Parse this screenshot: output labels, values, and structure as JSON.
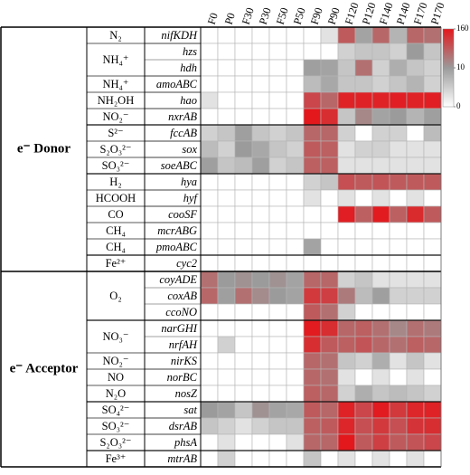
{
  "chart_data": {
    "type": "heatmap",
    "samples": [
      "F0",
      "P0",
      "F30",
      "P30",
      "F50",
      "P50",
      "F90",
      "P90",
      "F120",
      "P120",
      "F140",
      "P140",
      "F170",
      "P170"
    ],
    "genes": [
      "nifKDH",
      "hzs",
      "hdh",
      "amoABC",
      "hao",
      "nxrAB",
      "fccAB",
      "sox",
      "soeABC",
      "hya",
      "hyf",
      "cooSF",
      "mcrABG",
      "pmoABC",
      "cyc2",
      "coyADE",
      "coxAB",
      "ccoNO",
      "narGHI",
      "nrfAH",
      "nirKS",
      "norBC",
      "nosZ",
      "sat",
      "dsrAB",
      "phsA",
      "mtrAB"
    ],
    "compounds": [
      "N₂",
      "NH₄⁺",
      null,
      "NH₄⁺",
      "NH₂OH",
      "NO₂⁻",
      "S²⁻",
      "S₂O₃²⁻",
      "SO₃²⁻",
      "H₂",
      "HCOOH",
      "CO",
      "CH₄",
      "CH₄",
      "Fe²⁺",
      "O₂",
      null,
      null,
      "NO₃⁻",
      null,
      "NO₂⁻",
      "NO",
      "N₂O",
      "SO₄²⁻",
      "SO₃²⁻",
      "S₂O₃²⁻",
      "Fe³⁺"
    ],
    "sections": [
      "e⁻ Donor",
      null,
      null,
      null,
      null,
      null,
      null,
      null,
      null,
      null,
      null,
      null,
      null,
      null,
      null,
      "e⁻ Acceptor",
      null,
      null,
      null,
      null,
      null,
      null,
      null,
      null,
      null,
      null,
      null
    ],
    "values": [
      [
        0,
        0,
        0,
        0,
        0,
        0,
        0,
        1,
        40,
        8,
        30,
        5,
        30,
        25
      ],
      [
        0,
        0,
        0,
        0,
        0,
        0,
        0,
        0,
        2,
        3,
        3,
        2,
        10,
        3
      ],
      [
        0,
        0,
        0,
        0,
        0,
        0,
        9,
        8,
        3,
        25,
        2,
        6,
        3,
        2
      ],
      [
        0,
        0,
        0,
        0,
        0,
        0,
        4,
        7,
        3,
        3,
        2,
        3,
        5,
        2
      ],
      [
        1,
        0,
        0,
        0,
        0,
        0,
        60,
        30,
        130,
        130,
        130,
        140,
        130,
        140
      ],
      [
        0,
        0,
        0,
        0,
        0,
        0,
        160,
        100,
        3,
        15,
        8,
        10,
        5,
        9
      ],
      [
        2,
        3,
        9,
        3,
        2,
        3,
        30,
        30,
        2,
        0,
        2,
        2,
        0,
        4
      ],
      [
        4,
        2,
        10,
        7,
        3,
        2,
        40,
        35,
        1,
        2,
        2,
        1,
        1,
        1
      ],
      [
        9,
        3,
        4,
        9,
        2,
        3,
        35,
        35,
        1,
        1,
        1,
        1,
        1,
        1
      ],
      [
        0,
        0,
        0,
        0,
        0,
        0,
        2,
        3,
        50,
        40,
        45,
        40,
        40,
        40
      ],
      [
        0,
        0,
        0,
        0,
        0,
        0,
        1,
        0,
        1,
        0,
        1,
        0,
        1,
        0
      ],
      [
        0,
        0,
        0,
        0,
        0,
        0,
        0,
        0,
        140,
        35,
        150,
        35,
        110,
        40
      ],
      [
        0,
        0,
        0,
        0,
        0,
        0,
        0,
        0,
        0,
        0,
        0,
        0,
        0,
        0
      ],
      [
        0,
        0,
        0,
        0,
        0,
        0,
        8,
        0,
        0,
        0,
        0,
        0,
        0,
        0
      ],
      [
        0,
        0,
        0,
        0,
        0,
        0,
        0,
        0,
        0,
        0,
        0,
        0,
        0,
        0
      ],
      [
        25,
        10,
        12,
        10,
        12,
        8,
        30,
        30,
        2,
        3,
        1,
        1,
        1,
        1
      ],
      [
        30,
        9,
        25,
        14,
        10,
        8,
        80,
        70,
        20,
        4,
        9,
        2,
        2,
        2
      ],
      [
        0,
        0,
        0,
        0,
        0,
        0,
        40,
        25,
        2,
        0,
        0,
        0,
        0,
        0
      ],
      [
        0,
        0,
        0,
        0,
        0,
        0,
        150,
        100,
        30,
        35,
        25,
        15,
        25,
        20
      ],
      [
        0,
        2,
        0,
        0,
        0,
        0,
        100,
        40,
        35,
        45,
        30,
        25,
        35,
        30
      ],
      [
        0,
        0,
        0,
        0,
        0,
        0,
        30,
        25,
        3,
        2,
        6,
        1,
        3,
        1
      ],
      [
        0,
        0,
        0,
        0,
        0,
        0,
        30,
        25,
        1,
        0,
        1,
        0,
        1,
        0
      ],
      [
        0,
        0,
        0,
        0,
        0,
        0,
        35,
        30,
        2,
        6,
        3,
        4,
        3,
        2
      ],
      [
        10,
        8,
        3,
        12,
        8,
        7,
        40,
        30,
        130,
        60,
        150,
        80,
        120,
        130
      ],
      [
        3,
        2,
        1,
        2,
        3,
        3,
        35,
        40,
        120,
        50,
        80,
        50,
        90,
        100
      ],
      [
        0,
        1,
        0,
        0,
        0,
        1,
        30,
        30,
        160,
        40,
        70,
        40,
        45,
        60
      ],
      [
        0,
        2,
        0,
        0,
        0,
        0,
        3,
        0,
        1,
        0,
        1,
        0,
        1,
        0
      ]
    ],
    "clim": [
      0,
      160
    ],
    "colorbar_ticks": [
      0,
      10,
      160
    ],
    "colors": [
      "#ffffff",
      "#9b9b9b",
      "#e3181d"
    ]
  }
}
